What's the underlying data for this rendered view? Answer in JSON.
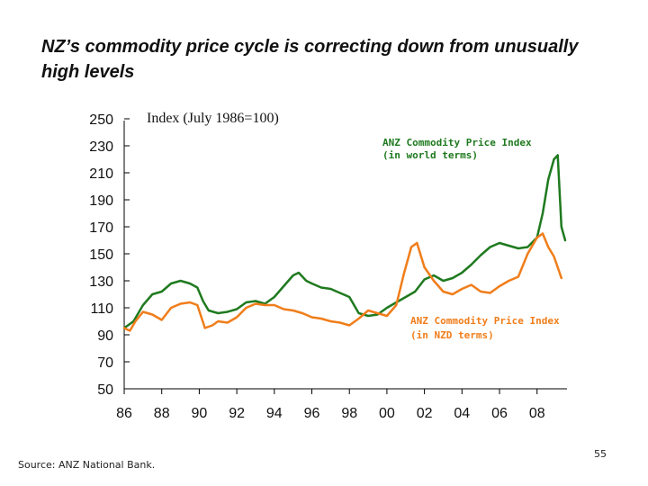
{
  "title": "NZ’s commodity price cycle is correcting down from unusually high levels",
  "source": "Source:  ANZ National Bank.",
  "page_number": "55",
  "chart_data": {
    "type": "line",
    "ylabel": "Index (July 1986=100)",
    "ylim": [
      50,
      250
    ],
    "yticks": [
      50,
      70,
      90,
      110,
      130,
      150,
      170,
      190,
      210,
      230,
      250
    ],
    "xlim": [
      1986,
      2009.5
    ],
    "xticks": [
      {
        "x": 1986,
        "label": "86"
      },
      {
        "x": 1988,
        "label": "88"
      },
      {
        "x": 1990,
        "label": "90"
      },
      {
        "x": 1992,
        "label": "92"
      },
      {
        "x": 1994,
        "label": "94"
      },
      {
        "x": 1996,
        "label": "96"
      },
      {
        "x": 1998,
        "label": "98"
      },
      {
        "x": 2000,
        "label": "00"
      },
      {
        "x": 2002,
        "label": "02"
      },
      {
        "x": 2004,
        "label": "04"
      },
      {
        "x": 2006,
        "label": "06"
      },
      {
        "x": 2008,
        "label": "08"
      }
    ],
    "grid": false,
    "series": [
      {
        "name": "ANZ Commodity Price Index (in world terms)",
        "label_lines": [
          "ANZ Commodity Price Index",
          "(in world terms)"
        ],
        "color": "#1f7a1f",
        "x": [
          1986.0,
          1986.5,
          1987.0,
          1987.5,
          1988.0,
          1988.5,
          1989.0,
          1989.5,
          1989.9,
          1990.2,
          1990.5,
          1991.0,
          1991.5,
          1992.0,
          1992.5,
          1993.0,
          1993.5,
          1994.0,
          1994.5,
          1995.0,
          1995.3,
          1995.7,
          1996.0,
          1996.5,
          1997.0,
          1997.5,
          1998.0,
          1998.5,
          1999.0,
          1999.5,
          2000.0,
          2000.5,
          2001.0,
          2001.5,
          2002.0,
          2002.5,
          2003.0,
          2003.5,
          2004.0,
          2004.5,
          2005.0,
          2005.5,
          2006.0,
          2006.5,
          2007.0,
          2007.5,
          2008.0,
          2008.3,
          2008.6,
          2008.9,
          2009.1,
          2009.3,
          2009.5
        ],
        "values": [
          95,
          100,
          112,
          120,
          122,
          128,
          130,
          128,
          125,
          115,
          108,
          106,
          107,
          109,
          114,
          115,
          113,
          118,
          126,
          134,
          136,
          130,
          128,
          125,
          124,
          121,
          118,
          106,
          104,
          105,
          110,
          114,
          118,
          122,
          131,
          134,
          130,
          132,
          136,
          142,
          149,
          155,
          158,
          156,
          154,
          155,
          162,
          180,
          205,
          220,
          223,
          170,
          160
        ]
      },
      {
        "name": "ANZ Commodity Price Index (in NZD terms)",
        "label_lines": [
          "ANZ Commodity Price Index",
          "(in NZD terms)"
        ],
        "color": "#f07d1a",
        "x": [
          1986.0,
          1986.3,
          1986.6,
          1987.0,
          1987.5,
          1988.0,
          1988.5,
          1989.0,
          1989.5,
          1989.9,
          1990.3,
          1990.7,
          1991.0,
          1991.5,
          1992.0,
          1992.5,
          1993.0,
          1993.5,
          1994.0,
          1994.5,
          1995.0,
          1995.5,
          1996.0,
          1996.5,
          1997.0,
          1997.5,
          1998.0,
          1998.5,
          1999.0,
          1999.5,
          2000.0,
          2000.5,
          2000.9,
          2001.3,
          2001.6,
          2002.0,
          2002.5,
          2003.0,
          2003.5,
          2004.0,
          2004.5,
          2005.0,
          2005.5,
          2006.0,
          2006.5,
          2007.0,
          2007.5,
          2008.0,
          2008.3,
          2008.6,
          2008.9,
          2009.1,
          2009.3
        ],
        "values": [
          95,
          93,
          100,
          107,
          105,
          101,
          110,
          113,
          114,
          112,
          95,
          97,
          100,
          99,
          103,
          110,
          113,
          112,
          112,
          109,
          108,
          106,
          103,
          102,
          100,
          99,
          97,
          102,
          108,
          106,
          104,
          112,
          135,
          155,
          158,
          140,
          130,
          122,
          120,
          124,
          127,
          122,
          121,
          126,
          130,
          133,
          150,
          162,
          165,
          155,
          148,
          140,
          132
        ]
      }
    ]
  }
}
